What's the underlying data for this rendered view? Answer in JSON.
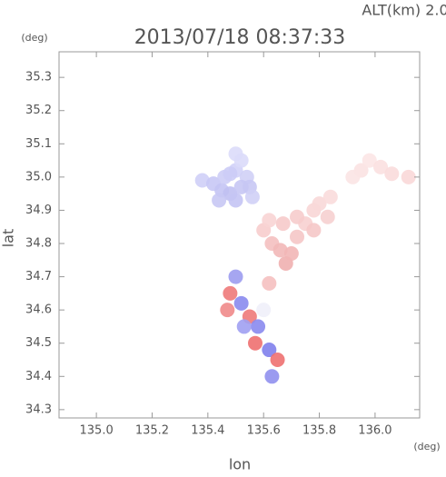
{
  "chart_data": {
    "type": "scatter",
    "title": "2013/07/18 08:37:33",
    "subtitle": "ALT(km) 2.0",
    "ylabel": "lat",
    "ylabel_unit": "(deg)",
    "xlabel": "lon",
    "xlabel_unit": "(deg)",
    "xlim": [
      134.866,
      136.16
    ],
    "ylim": [
      34.275,
      35.377
    ],
    "xticks": [
      {
        "value": 135,
        "label": "135.0"
      },
      135.2,
      135.4,
      135.6,
      135.8,
      {
        "value": 136,
        "label": "136.0"
      }
    ],
    "yticks": [
      34.3,
      34.4,
      34.5,
      34.6,
      34.7,
      34.8,
      34.9,
      {
        "value": 35,
        "label": "35.0"
      },
      35.1,
      35.2,
      35.3
    ],
    "x": [
      135.38,
      135.42,
      135.45,
      135.48,
      135.5,
      135.46,
      135.5,
      135.52,
      135.54,
      135.55,
      135.52,
      135.5,
      135.48,
      135.56,
      135.44,
      135.6,
      135.63,
      135.66,
      135.68,
      135.7,
      135.72,
      135.75,
      135.78,
      135.8,
      135.83,
      135.78,
      135.67,
      135.62,
      135.72,
      135.84,
      135.95,
      135.98,
      136.02,
      136.06,
      136.12,
      135.92,
      135.48,
      135.52,
      135.55,
      135.58,
      135.6,
      135.62,
      135.5,
      135.57,
      135.62,
      135.65,
      135.63,
      135.53,
      135.47
    ],
    "y": [
      34.99,
      34.98,
      34.96,
      34.95,
      34.93,
      35.0,
      35.02,
      35.05,
      35.0,
      34.97,
      34.97,
      35.07,
      35.01,
      34.94,
      34.93,
      34.84,
      34.8,
      34.78,
      34.74,
      34.77,
      34.82,
      34.86,
      34.9,
      34.92,
      34.88,
      34.84,
      34.86,
      34.87,
      34.88,
      34.94,
      35.02,
      35.05,
      35.03,
      35.01,
      35.0,
      35.0,
      34.65,
      34.62,
      34.58,
      34.55,
      34.6,
      34.68,
      34.7,
      34.5,
      34.48,
      34.45,
      34.4,
      34.55,
      34.6
    ],
    "colors": [
      "#cfcff7",
      "#c8c8f5",
      "#c4c4f4",
      "#c0c0f2",
      "#c4c4f4",
      "#cdcdf6",
      "#d2d2f8",
      "#dadafa",
      "#d0d0f6",
      "#c8c8f4",
      "#c6c6f4",
      "#dcdcfa",
      "#ccccf6",
      "#d0d0f6",
      "#c8c8f4",
      "#f7cdcd",
      "#f4c0c0",
      "#f2b8b8",
      "#f0b0b0",
      "#f2b6b6",
      "#f5c6c6",
      "#f7d0d0",
      "#f8d6d6",
      "#f8d8d8",
      "#f6d0d0",
      "#f5c8c8",
      "#f6caca",
      "#f8d4d4",
      "#f6cccc",
      "#f9dcdc",
      "#fbe2e2",
      "#fce6e6",
      "#fbe0e0",
      "#fadcdc",
      "#f9d8d8",
      "#fbe4e4",
      "#ee7a7a",
      "#8a8aee",
      "#ee7a7a",
      "#8a8aee",
      "#f0f0fa",
      "#f5c0c0",
      "#9c9cf0",
      "#ee7070",
      "#8080ec",
      "#ee7070",
      "#9090ee",
      "#a0a0f2",
      "#f08a8a"
    ]
  }
}
